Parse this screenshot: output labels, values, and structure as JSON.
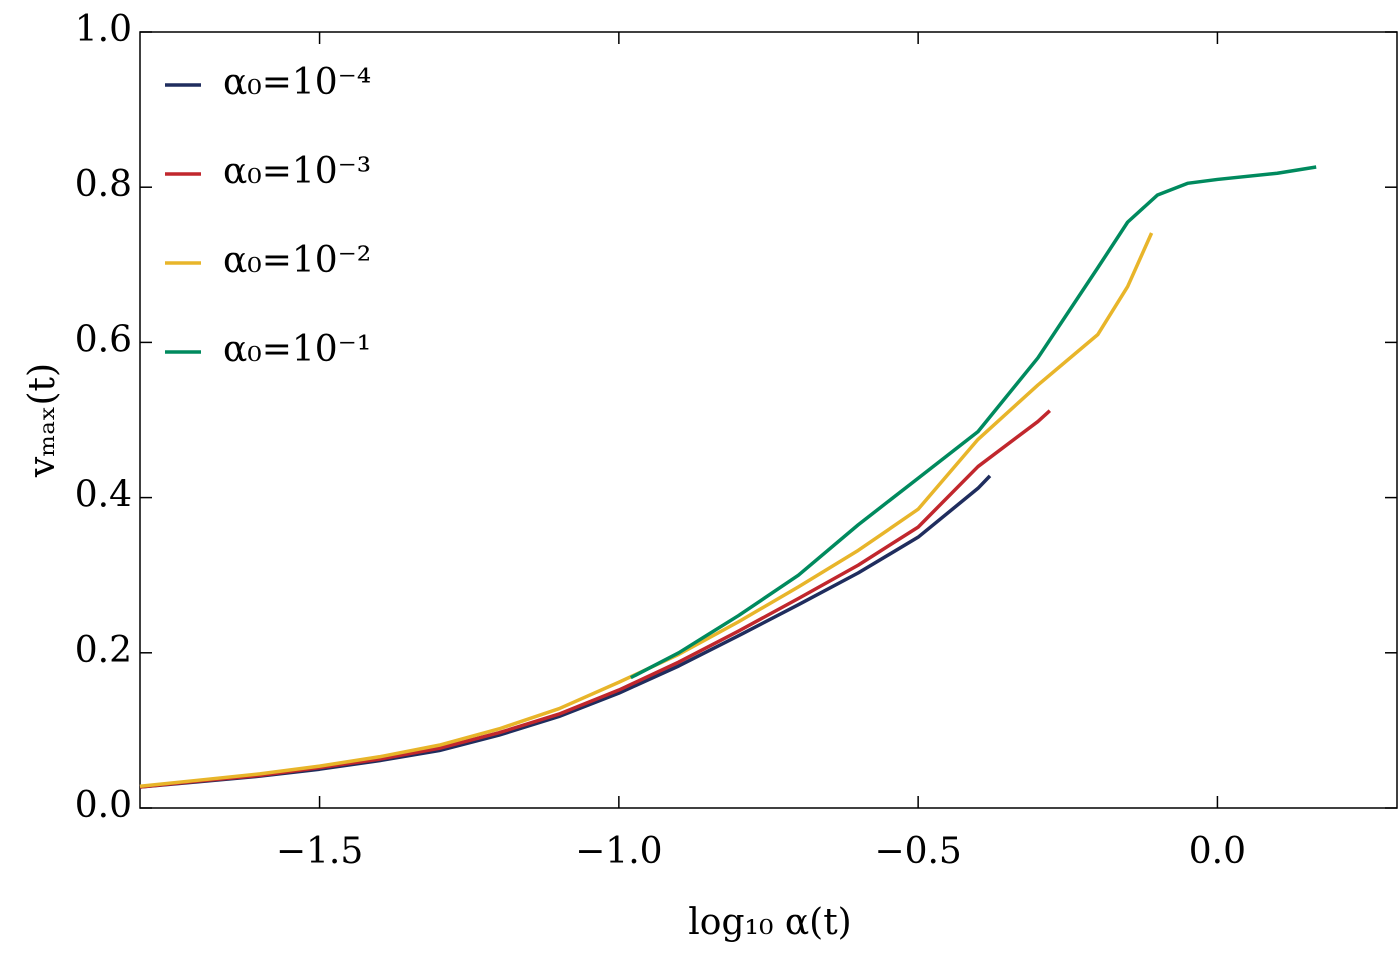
{
  "chart_data": {
    "type": "line",
    "xlabel": "log₁₀ α(t)",
    "ylabel": "vₘₐₓ(t)",
    "xlim": [
      -1.8,
      0.3
    ],
    "ylim": [
      0,
      1
    ],
    "xticks": [
      {
        "value": -1.5,
        "label": "−1.5"
      },
      {
        "value": -1.0,
        "label": "−1.0"
      },
      {
        "value": -0.5,
        "label": "−0.5"
      },
      {
        "value": 0,
        "label": "0.0"
      }
    ],
    "yticks": [
      {
        "value": 0,
        "label": "0.0"
      },
      0.2,
      0.4,
      0.6,
      0.8,
      {
        "value": 1,
        "label": "1.0"
      }
    ],
    "legend": "upper left",
    "series": [
      {
        "name": "α₀=10⁻⁴",
        "color": "#1f2d5e",
        "x": [
          -1.8,
          -1.7,
          -1.6,
          -1.5,
          -1.4,
          -1.3,
          -1.2,
          -1.1,
          -1.0,
          -0.9,
          -0.8,
          -0.7,
          -0.6,
          -0.5,
          -0.4,
          -0.38
        ],
        "values": [
          0.027,
          0.034,
          0.041,
          0.05,
          0.061,
          0.074,
          0.094,
          0.118,
          0.148,
          0.183,
          0.222,
          0.262,
          0.303,
          0.349,
          0.412,
          0.428
        ]
      },
      {
        "name": "α₀=10⁻³",
        "color": "#c1272d",
        "x": [
          -1.8,
          -1.7,
          -1.6,
          -1.5,
          -1.4,
          -1.3,
          -1.2,
          -1.1,
          -1.0,
          -0.9,
          -0.8,
          -0.7,
          -0.6,
          -0.5,
          -0.4,
          -0.3,
          -0.28
        ],
        "values": [
          0.027,
          0.035,
          0.042,
          0.052,
          0.063,
          0.077,
          0.097,
          0.121,
          0.152,
          0.188,
          0.228,
          0.27,
          0.313,
          0.362,
          0.44,
          0.498,
          0.512
        ]
      },
      {
        "name": "α₀=10⁻²",
        "color": "#e8b52a",
        "x": [
          -1.8,
          -1.7,
          -1.6,
          -1.5,
          -1.4,
          -1.3,
          -1.2,
          -1.1,
          -1.0,
          -0.9,
          -0.8,
          -0.7,
          -0.6,
          -0.5,
          -0.4,
          -0.3,
          -0.2,
          -0.15,
          -0.11
        ],
        "values": [
          0.028,
          0.036,
          0.044,
          0.054,
          0.066,
          0.081,
          0.102,
          0.128,
          0.162,
          0.198,
          0.24,
          0.285,
          0.332,
          0.385,
          0.475,
          0.545,
          0.61,
          0.672,
          0.741
        ]
      },
      {
        "name": "α₀=10⁻¹",
        "color": "#008a5e",
        "x": [
          -0.98,
          -0.9,
          -0.8,
          -0.7,
          -0.6,
          -0.5,
          -0.4,
          -0.3,
          -0.2,
          -0.15,
          -0.1,
          -0.05,
          0,
          0.1,
          0.165
        ],
        "values": [
          0.168,
          0.2,
          0.248,
          0.3,
          0.365,
          0.425,
          0.485,
          0.58,
          0.696,
          0.755,
          0.79,
          0.805,
          0.81,
          0.818,
          0.826
        ]
      }
    ]
  }
}
